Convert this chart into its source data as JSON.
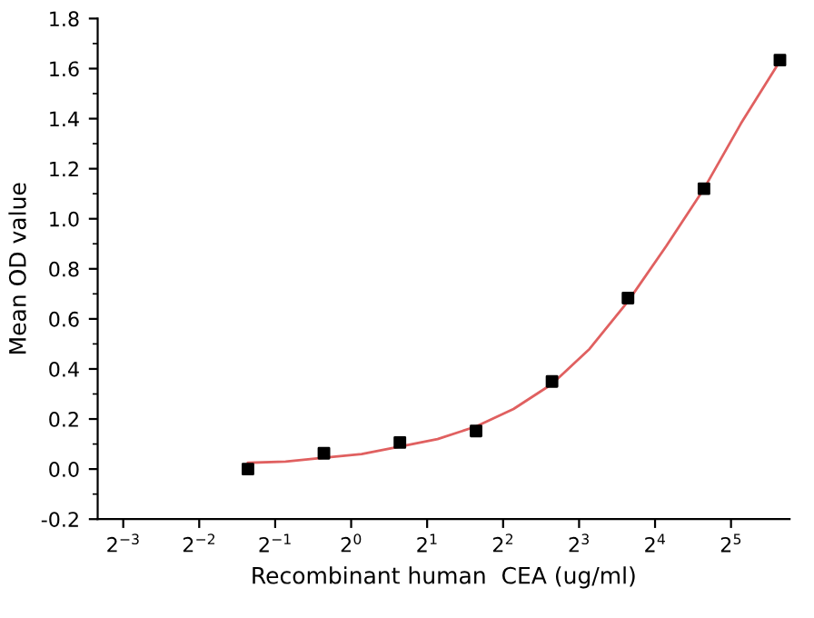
{
  "chart_data": {
    "type": "scatter",
    "xlabel": "Recombinant human  CEA (ug/ml)",
    "ylabel": "Mean OD value",
    "log": "x",
    "marker": "square",
    "grid": false,
    "series": [
      {
        "color": "#000000",
        "x": [
          0.39,
          0.78,
          1.56,
          3.125,
          6.25,
          12.5,
          25,
          50
        ],
        "values": [
          0.0,
          0.063,
          0.106,
          0.152,
          0.35,
          0.683,
          1.12,
          1.634
        ]
      },
      {
        "type": "line",
        "color": "#e06060",
        "marker": "none",
        "x": [
          0.39,
          0.55,
          0.78,
          1.1,
          1.56,
          2.2,
          3.125,
          4.4,
          6.25,
          8.8,
          12.5,
          17.7,
          25,
          35,
          50
        ],
        "values": [
          0.025,
          0.03,
          0.045,
          0.06,
          0.09,
          0.12,
          0.17,
          0.24,
          0.34,
          0.48,
          0.67,
          0.89,
          1.12,
          1.38,
          1.63
        ]
      }
    ],
    "xlim": [
      0.099,
      54.6
    ],
    "ylim": [
      -0.2,
      1.8
    ],
    "xticks": [
      {
        "value": 0.125,
        "label": "2$^{−3}$"
      },
      {
        "value": 0.25,
        "label": "2$^{−2}$"
      },
      {
        "value": 0.5,
        "label": "2$^{−1}$"
      },
      {
        "value": 1,
        "label": "2$^{0}$"
      },
      {
        "value": 2,
        "label": "2$^{1}$"
      },
      {
        "value": 4,
        "label": "2$^{2}$"
      },
      {
        "value": 8,
        "label": "2$^{3}$"
      },
      {
        "value": 16,
        "label": "2$^{4}$"
      },
      {
        "value": 32,
        "label": "2$^{5}$"
      }
    ],
    "yticks": [
      {
        "value": -0.2,
        "label": "-0.2"
      },
      {
        "value": -0.1,
        "label": null
      },
      {
        "value": 0.0,
        "label": "0.0"
      },
      {
        "value": 0.1,
        "label": null
      },
      {
        "value": 0.2,
        "label": "0.2"
      },
      {
        "value": 0.3,
        "label": null
      },
      {
        "value": 0.4,
        "label": "0.4"
      },
      {
        "value": 0.5,
        "label": null
      },
      {
        "value": 0.6,
        "label": "0.6"
      },
      {
        "value": 0.7,
        "label": null
      },
      {
        "value": 0.8,
        "label": "0.8"
      },
      {
        "value": 0.9,
        "label": null
      },
      {
        "value": 1.0,
        "label": "1.0"
      },
      {
        "value": 1.1,
        "label": null
      },
      {
        "value": 1.2,
        "label": "1.2"
      },
      {
        "value": 1.3,
        "label": null
      },
      {
        "value": 1.4,
        "label": "1.4"
      },
      {
        "value": 1.5,
        "label": null
      },
      {
        "value": 1.6,
        "label": "1.6"
      },
      {
        "value": 1.7,
        "label": null
      },
      {
        "value": 1.8,
        "label": "1.8"
      }
    ]
  }
}
